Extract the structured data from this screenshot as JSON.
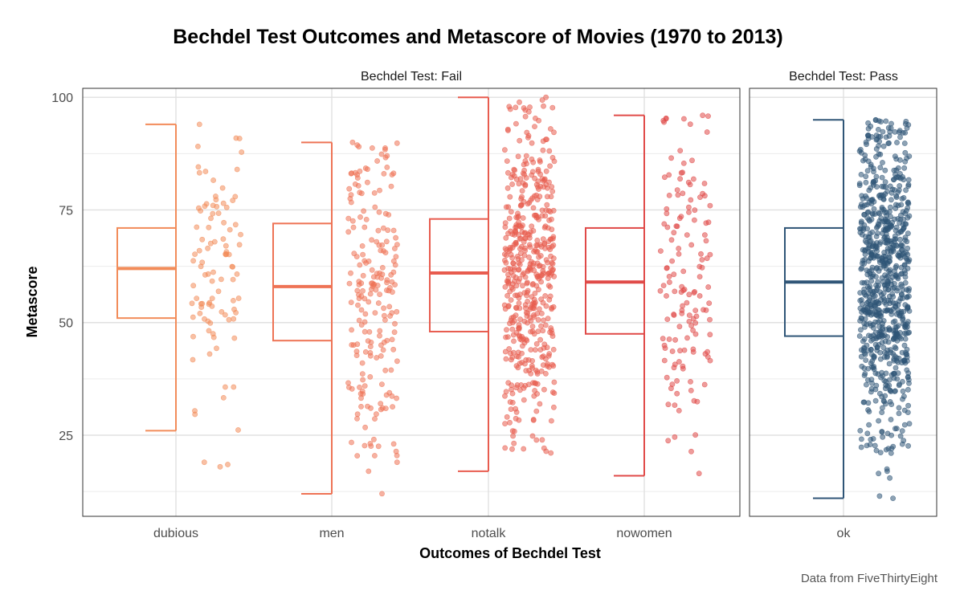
{
  "chart_data": {
    "type": "boxplot-jitter",
    "title": "Bechdel Test Outcomes and Metascore of Movies (1970 to 2013)",
    "xlabel": "Outcomes of Bechdel Test",
    "ylabel": "Metascore",
    "caption": "Data from FiveThirtyEight",
    "ylim": [
      7,
      102
    ],
    "yticks": [
      25,
      50,
      75,
      100
    ],
    "grid": true,
    "legend": "none",
    "facets": [
      {
        "label": "Bechdel Test: Fail",
        "categories": [
          {
            "name": "dubious",
            "color": "#F28C5A",
            "n": 95,
            "box": {
              "min": 26,
              "q1": 51,
              "median": 62,
              "q3": 71,
              "max": 94
            },
            "outliers": [
              18,
              18.5,
              19
            ]
          },
          {
            "name": "men",
            "color": "#EE7355",
            "n": 200,
            "box": {
              "min": 12,
              "q1": 46,
              "median": 58,
              "q3": 72,
              "max": 90
            },
            "outliers": [
              12,
              17,
              19
            ]
          },
          {
            "name": "notalk",
            "color": "#E85C4F",
            "n": 500,
            "box": {
              "min": 17,
              "q1": 48,
              "median": 61,
              "q3": 73,
              "max": 100
            },
            "outliers": []
          },
          {
            "name": "nowomen",
            "color": "#E04A48",
            "n": 140,
            "box": {
              "min": 16,
              "q1": 47.5,
              "median": 59,
              "q3": 71,
              "max": 96
            },
            "outliers": [
              16.5
            ]
          }
        ]
      },
      {
        "label": "Bechdel Test: Pass",
        "categories": [
          {
            "name": "ok",
            "color": "#2F5577",
            "n": 800,
            "box": {
              "min": 11,
              "q1": 47,
              "median": 59,
              "q3": 71,
              "max": 95
            },
            "outliers": [
              11.5,
              11,
              15.5,
              16.5,
              17,
              17.5
            ]
          }
        ]
      }
    ]
  }
}
